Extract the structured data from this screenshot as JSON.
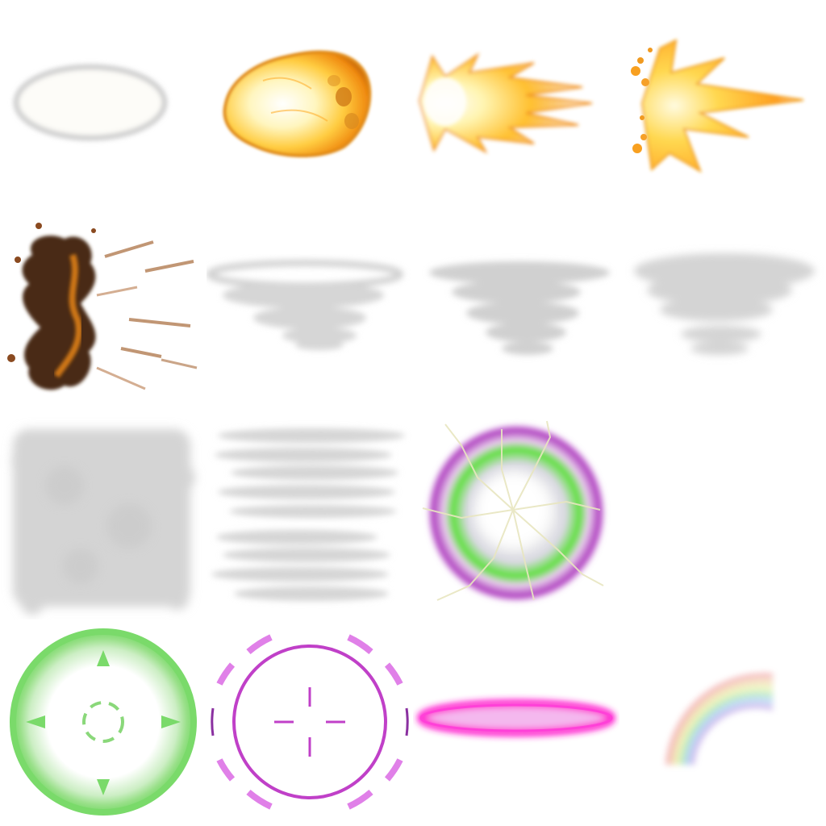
{
  "sprite_sheet": {
    "grid": {
      "columns": 4,
      "rows": 4
    },
    "background": "#ffffff",
    "sprites": [
      {
        "id": "smoke-ring",
        "row": 1,
        "col": 1,
        "color": "#d2d2d2"
      },
      {
        "id": "fireball-explosion",
        "row": 1,
        "col": 2,
        "color": "#f5a020"
      },
      {
        "id": "flame-burst-cone",
        "row": 1,
        "col": 3,
        "color": "#ffb020"
      },
      {
        "id": "muzzle-flash-sparks",
        "row": 1,
        "col": 4,
        "color": "#ff9a10"
      },
      {
        "id": "dark-smoke-explosion",
        "row": 2,
        "col": 1,
        "color": "#4a2a14"
      },
      {
        "id": "whirlwind-wide",
        "row": 2,
        "col": 2,
        "color": "#d8d8d8"
      },
      {
        "id": "whirlwind-medium",
        "row": 2,
        "col": 3,
        "color": "#d0d0d0"
      },
      {
        "id": "whirlwind-cloud",
        "row": 2,
        "col": 4,
        "color": "#d4d4d4"
      },
      {
        "id": "dust-cloud-square",
        "row": 3,
        "col": 1,
        "color": "#d4d4d4"
      },
      {
        "id": "streaky-cloud-layers",
        "row": 3,
        "col": 2,
        "color": "#d8d8d8"
      },
      {
        "id": "electric-energy-orb",
        "row": 3,
        "col": 3,
        "colors": [
          "#b040c0",
          "#60e040",
          "#ffffff"
        ]
      },
      {
        "id": "green-target-reticle",
        "row": 4,
        "col": 1,
        "color": "#7ada6a"
      },
      {
        "id": "purple-crosshair-ring",
        "row": 4,
        "col": 2,
        "color": "#c040c8"
      },
      {
        "id": "magenta-glow-ring",
        "row": 4,
        "col": 3,
        "color": "#ff20d0"
      },
      {
        "id": "rainbow-arc",
        "row": 4,
        "col": 4,
        "colors": [
          "#f0a0a0",
          "#f0d0a0",
          "#e0f0a0",
          "#a0e0b0",
          "#a0c8f0",
          "#c0a8e8"
        ]
      }
    ]
  }
}
